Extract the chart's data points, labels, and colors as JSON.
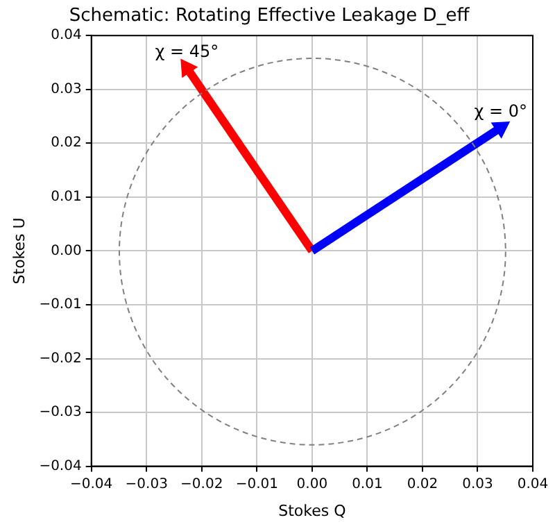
{
  "chart_data": {
    "type": "line",
    "title": "Schematic: Rotating Effective Leakage D_eff",
    "xlabel": "Stokes Q",
    "ylabel": "Stokes U",
    "xlim": [
      -0.04,
      0.04
    ],
    "ylim": [
      -0.04,
      0.04
    ],
    "xticks": [
      {
        "value": -0.04,
        "label": "−0.04"
      },
      {
        "value": -0.03,
        "label": "−0.03"
      },
      {
        "value": -0.02,
        "label": "−0.02"
      },
      {
        "value": -0.01,
        "label": "−0.01"
      },
      {
        "value": 0,
        "label": "0.00"
      },
      {
        "value": 0.01,
        "label": "0.01"
      },
      {
        "value": 0.02,
        "label": "0.02"
      },
      {
        "value": 0.03,
        "label": "0.03"
      },
      {
        "value": 0.04,
        "label": "0.04"
      }
    ],
    "yticks": [
      {
        "value": -0.04,
        "label": "−0.04"
      },
      {
        "value": -0.03,
        "label": "−0.03"
      },
      {
        "value": -0.02,
        "label": "−0.02"
      },
      {
        "value": -0.01,
        "label": "−0.01"
      },
      {
        "value": 0,
        "label": "0.00"
      },
      {
        "value": 0.01,
        "label": "0.01"
      },
      {
        "value": 0.02,
        "label": "0.02"
      },
      {
        "value": 0.03,
        "label": "0.03"
      },
      {
        "value": 0.04,
        "label": "0.04"
      }
    ],
    "grid": true,
    "legend": false,
    "series": [
      {
        "color": "#0000ff",
        "line_style": "solid",
        "marker": "triangle",
        "x": [
          0,
          0.0342
        ],
        "values": [
          0,
          0.0229
        ]
      },
      {
        "color": "#ff0000",
        "line_style": "solid",
        "marker": "triangle",
        "x": [
          0,
          -0.0227
        ],
        "values": [
          0,
          0.034
        ]
      }
    ],
    "annotations": [
      {
        "text": "χ = 0°",
        "x": 0.0342,
        "y": 0.0229
      },
      {
        "text": "χ = 45°",
        "x": -0.0227,
        "y": 0.034
      }
    ]
  }
}
